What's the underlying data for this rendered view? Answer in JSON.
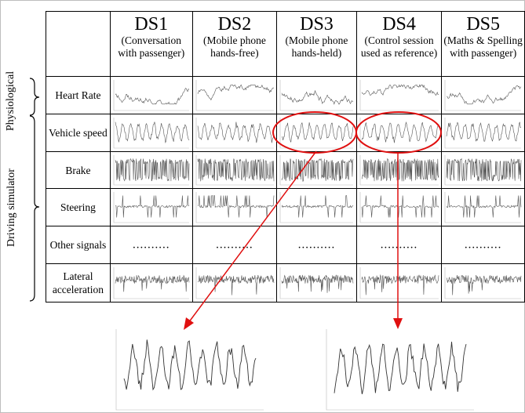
{
  "columns": [
    {
      "title": "DS1",
      "subtitle": "(Conversation with passenger)"
    },
    {
      "title": "DS2",
      "subtitle": "(Mobile phone hands-free)"
    },
    {
      "title": "DS3",
      "subtitle": "(Mobile phone hands-held)"
    },
    {
      "title": "DS4",
      "subtitle": "(Control session used as reference)"
    },
    {
      "title": "DS5",
      "subtitle": "(Maths & Spelling with passenger)"
    }
  ],
  "rows": [
    {
      "label": "Heart Rate",
      "signal": "heart"
    },
    {
      "label": "Vehicle speed",
      "signal": "speed"
    },
    {
      "label": "Brake",
      "signal": "brake"
    },
    {
      "label": "Steering",
      "signal": "steer"
    },
    {
      "label": "Other signals",
      "signal": "dots"
    },
    {
      "label": "Lateral acceleration",
      "signal": "lat"
    }
  ],
  "dots_text": "..........",
  "groups": {
    "physiological": "Physiological",
    "driving": "Driving simulator"
  },
  "highlight_color": "#e01010",
  "highlighted_cells": [
    "DS3 / Vehicle speed",
    "DS4 / Vehicle speed"
  ]
}
